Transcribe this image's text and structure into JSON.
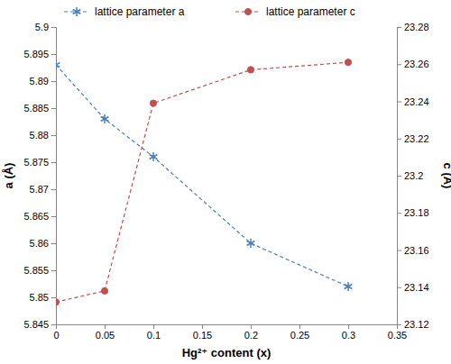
{
  "chart_data": {
    "type": "line",
    "x_label": "Hg²⁺ content (x)",
    "y_label": "a (Å)",
    "y2_label": "c (Å)",
    "x": [
      0,
      0.05,
      0.1,
      0.2,
      0.3
    ],
    "series": [
      {
        "name": "lattice parameter a",
        "color": "#4a7ebb",
        "marker": "asterisk",
        "line_style": "dashed",
        "values": [
          5.893,
          5.883,
          5.876,
          5.86,
          5.852
        ]
      },
      {
        "name": "lattice parameter c",
        "color": "#c0504d",
        "marker": "circle",
        "line_style": "dashed",
        "axis": "y2",
        "values": [
          23.132,
          23.138,
          23.239,
          23.257,
          23.261
        ]
      }
    ],
    "xlim": [
      0,
      0.35
    ],
    "xticks": [
      0,
      0.05,
      0.1,
      0.15,
      0.2,
      0.25,
      0.3,
      0.35
    ],
    "ylim": [
      5.845,
      5.9
    ],
    "yticks": [
      5.845,
      5.85,
      5.855,
      5.86,
      5.865,
      5.87,
      5.875,
      5.88,
      5.885,
      5.89,
      5.895,
      5.9
    ],
    "y2lim": [
      23.12,
      23.28
    ],
    "y2ticks": [
      23.12,
      23.14,
      23.16,
      23.18,
      23.2,
      23.22,
      23.24,
      23.26,
      23.28
    ],
    "grid": false,
    "legend": "top"
  }
}
